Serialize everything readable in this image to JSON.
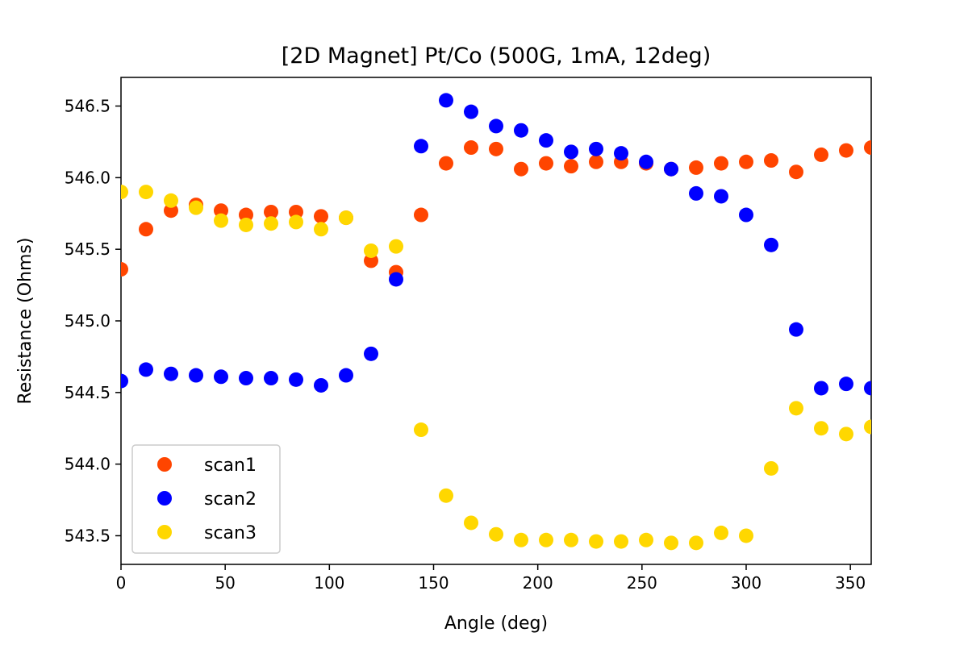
{
  "chart_data": {
    "type": "scatter",
    "title": "[2D Magnet] Pt/Co (500G, 1mA, 12deg)",
    "xlabel": "Angle (deg)",
    "ylabel": "Resistance (Ohms)",
    "xlim": [
      0,
      360
    ],
    "ylim": [
      543.3,
      546.7
    ],
    "xticks": [
      0,
      50,
      100,
      150,
      200,
      250,
      300,
      350
    ],
    "yticks": [
      543.5,
      544.0,
      544.5,
      545.0,
      545.5,
      546.0,
      546.5
    ],
    "xtick_labels": [
      "0",
      "50",
      "100",
      "150",
      "200",
      "250",
      "300",
      "350"
    ],
    "ytick_labels": [
      "543.5",
      "544.0",
      "544.5",
      "545.0",
      "545.5",
      "546.0",
      "546.5"
    ],
    "grid": false,
    "legend_position": "lower-left",
    "x": [
      0,
      12,
      24,
      36,
      48,
      60,
      72,
      84,
      96,
      108,
      120,
      132,
      144,
      156,
      168,
      180,
      192,
      204,
      216,
      228,
      240,
      252,
      264,
      276,
      288,
      300,
      312,
      324,
      336,
      348,
      360
    ],
    "series": [
      {
        "name": "scan1",
        "color": "#ff4500",
        "values": [
          545.36,
          545.64,
          545.77,
          545.81,
          545.77,
          545.74,
          545.76,
          545.76,
          545.73,
          545.72,
          545.42,
          545.34,
          545.74,
          546.1,
          546.21,
          546.2,
          546.06,
          546.1,
          546.08,
          546.11,
          546.11,
          546.1,
          546.06,
          546.07,
          546.1,
          546.11,
          546.12,
          546.04,
          546.16,
          546.19,
          546.21
        ]
      },
      {
        "name": "scan2",
        "color": "#0000ff",
        "values": [
          544.58,
          544.66,
          544.63,
          544.62,
          544.61,
          544.6,
          544.6,
          544.59,
          544.55,
          544.62,
          544.77,
          545.29,
          546.22,
          546.54,
          546.46,
          546.36,
          546.33,
          546.26,
          546.18,
          546.2,
          546.17,
          546.11,
          546.06,
          545.89,
          545.87,
          545.74,
          545.53,
          544.94,
          544.53,
          544.56,
          544.53
        ]
      },
      {
        "name": "scan3",
        "color": "#ffd700",
        "values": [
          545.9,
          545.9,
          545.84,
          545.79,
          545.7,
          545.67,
          545.68,
          545.69,
          545.64,
          545.72,
          545.49,
          545.52,
          544.24,
          543.78,
          543.59,
          543.51,
          543.47,
          543.47,
          543.47,
          543.46,
          543.46,
          543.47,
          543.45,
          543.45,
          543.52,
          543.5,
          543.97,
          544.39,
          544.25,
          544.21,
          544.26
        ]
      }
    ]
  }
}
